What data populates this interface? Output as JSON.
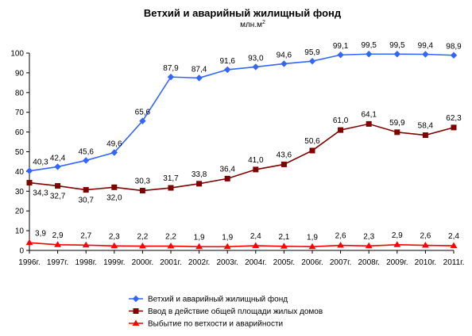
{
  "chart_data": {
    "type": "line",
    "title": "Ветхий и аварийный жилищный фонд",
    "subtitle": "млн.м",
    "subtitle_sup": "2",
    "categories": [
      "1996г.",
      "1997г.",
      "1998г.",
      "1999г.",
      "2000г.",
      "2001г.",
      "2002г.",
      "2003г.",
      "2004г.",
      "2005г.",
      "2006г.",
      "2007г.",
      "2008г.",
      "2009г.",
      "2010г.",
      "2011г."
    ],
    "ylim": [
      0,
      100
    ],
    "yticks": [
      "0",
      "10",
      "20",
      "30",
      "40",
      "50",
      "60",
      "70",
      "80",
      "90",
      "100"
    ],
    "grid": false,
    "legend_position": "bottom",
    "series": [
      {
        "name": "Ветхий и аварийный жилищный фонд",
        "color": "#3366ff",
        "marker": "diamond",
        "values": [
          40.3,
          42.4,
          45.6,
          49.6,
          65.6,
          87.9,
          87.4,
          91.6,
          93.0,
          94.6,
          95.9,
          99.1,
          99.5,
          99.5,
          99.4,
          98.9
        ],
        "labels": [
          "40,3",
          "42,4",
          "45,6",
          "49,6",
          "65,6",
          "87,9",
          "87,4",
          "91,6",
          "93,0",
          "94,6",
          "95,9",
          "99,1",
          "99,5",
          "99,5",
          "99,4",
          "98,9"
        ]
      },
      {
        "name": "Ввод в действие общей площади жилых домов",
        "color": "#800000",
        "marker": "square",
        "values": [
          34.3,
          32.7,
          30.7,
          32.0,
          30.3,
          31.7,
          33.8,
          36.4,
          41.0,
          43.6,
          50.6,
          61.0,
          64.1,
          59.9,
          58.4,
          62.3
        ],
        "labels": [
          "34,3",
          "32,7",
          "30,7",
          "32,0",
          "30,3",
          "31,7",
          "33,8",
          "36,4",
          "41,0",
          "43,6",
          "50,6",
          "61,0",
          "64,1",
          "59,9",
          "58,4",
          "62,3"
        ]
      },
      {
        "name": "Выбытие по ветхости и аварийности",
        "color": "#ff0000",
        "marker": "triangle",
        "values": [
          3.9,
          2.9,
          2.7,
          2.3,
          2.2,
          2.2,
          1.9,
          1.9,
          2.4,
          2.1,
          1.9,
          2.6,
          2.3,
          2.9,
          2.6,
          2.4
        ],
        "labels": [
          "3,9",
          "2,9",
          "2,7",
          "2,3",
          "2,2",
          "2,2",
          "1,9",
          "1,9",
          "2,4",
          "2,1",
          "1,9",
          "2,6",
          "2,3",
          "2,9",
          "2,6",
          "2,4"
        ]
      }
    ]
  }
}
